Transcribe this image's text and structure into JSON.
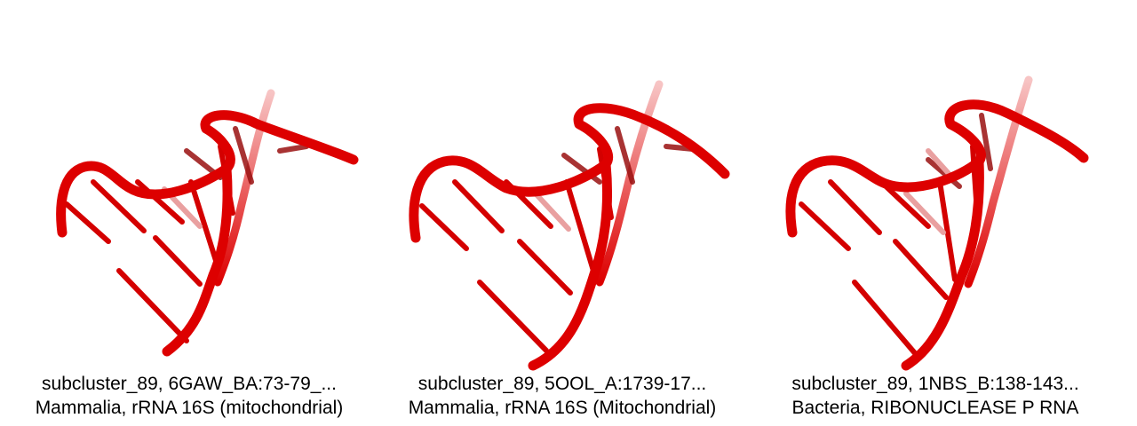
{
  "panels": [
    {
      "line1": "subcluster_89, 6GAW_BA:73-79_...",
      "line2": "Mammalia, rRNA 16S (mitochondrial)"
    },
    {
      "line1": "subcluster_89, 5OOL_A:1739-17...",
      "line2": "Mammalia, rRNA 16S (Mitochondrial)"
    },
    {
      "line1": "subcluster_89, 1NBS_B:138-143...",
      "line2": "Bacteria, RIBONUCLEASE P RNA"
    }
  ],
  "colors": {
    "backbone": "#e00000",
    "dark": "#8a0000",
    "faded": "#f2b6b6"
  }
}
